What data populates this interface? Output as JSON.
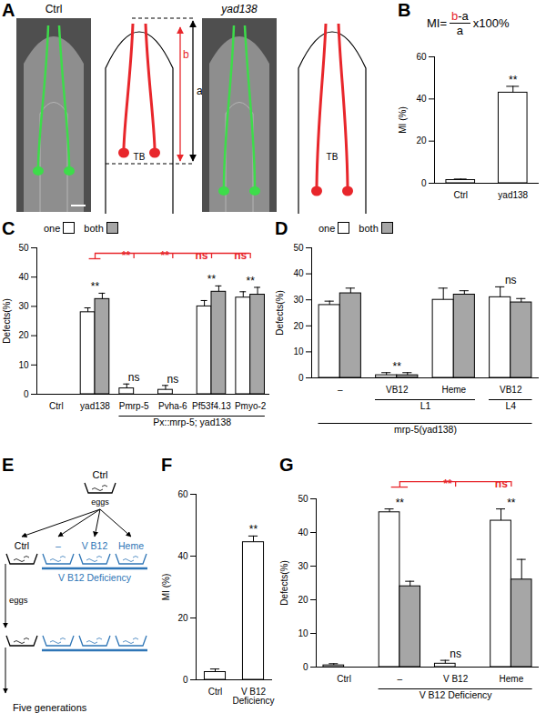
{
  "figure": {
    "A": {
      "panel": "A",
      "images": [
        "Ctrl",
        "yad138"
      ],
      "distances": [
        "a",
        "b"
      ],
      "colors": [
        "#000000",
        "#e8262b"
      ],
      "landmark": "TB"
    },
    "E": {
      "panel": "E",
      "start": {
        "label": "Ctrl",
        "content": "eggs"
      },
      "conditions": [
        "Ctrl",
        "–",
        "V B12",
        "Heme"
      ],
      "colors": [
        "#000000",
        "#2e75b6",
        "#2e75b6",
        "#2e75b6"
      ],
      "deficiency": {
        "label": "V B12 Deficiency",
        "from": 1,
        "to": 3
      },
      "transfer": "eggs",
      "repeat": "Five generations"
    }
  },
  "chart_data": [
    {
      "panel": "B",
      "type": "bar",
      "ylabel": "MI (%)",
      "formula": {
        "lhs": "MI=",
        "numerator": [
          {
            "text": "b",
            "color": "#e8262b"
          },
          {
            "text": "-a",
            "color": "#000000"
          }
        ],
        "denominator": "a",
        "factor": "x100%"
      },
      "categories": [
        "Ctrl",
        "yad138"
      ],
      "values": [
        1.5,
        43
      ],
      "errors": [
        0.5,
        3
      ],
      "color": "#ffffff",
      "annotations": [
        null,
        "**"
      ],
      "ylim": [
        0,
        60
      ],
      "yticks": [
        0,
        20,
        40,
        60
      ]
    },
    {
      "panel": "C",
      "type": "bar",
      "ylabel": "Defects(%)",
      "categories": [
        "Ctrl",
        "yad138",
        "Pmrp-5",
        "Pvha-6",
        "Pf53f4.13",
        "Pmyo-2"
      ],
      "series": [
        {
          "name": "one",
          "color": "#ffffff",
          "values": [
            0,
            28,
            2,
            1.5,
            30,
            33
          ],
          "errors": [
            0,
            1.5,
            1.5,
            1.5,
            2,
            2
          ]
        },
        {
          "name": "both",
          "color": "#a6a6a6",
          "values": [
            0,
            32.5,
            0,
            0,
            35,
            34
          ],
          "errors": [
            0,
            2,
            0,
            0,
            2,
            2.5
          ]
        }
      ],
      "annotations": [
        null,
        "**",
        "ns",
        "ns",
        "**",
        "**"
      ],
      "comparisons": {
        "reference": 1,
        "targets": [
          2,
          3,
          4,
          5
        ],
        "labels": [
          "**",
          "**",
          "ns",
          "ns"
        ],
        "color": "#e8262b"
      },
      "groups": [
        {
          "label": "Px::mrp-5; yad138",
          "from": 2,
          "to": 5,
          "level": 1
        }
      ],
      "legend": "top-left",
      "ylim": [
        0,
        50
      ],
      "yticks": [
        0,
        10,
        20,
        30,
        40,
        50
      ]
    },
    {
      "panel": "D",
      "type": "bar",
      "ylabel": "Defects(%)",
      "categories": [
        "–",
        "VB12",
        "Heme",
        "VB12"
      ],
      "series": [
        {
          "name": "one",
          "color": "#ffffff",
          "values": [
            28,
            1,
            30,
            31
          ],
          "errors": [
            1.5,
            1,
            4.5,
            4
          ]
        },
        {
          "name": "both",
          "color": "#a6a6a6",
          "values": [
            32.5,
            1,
            32,
            29
          ],
          "errors": [
            2,
            1,
            1.5,
            1.5
          ]
        }
      ],
      "annotations": [
        null,
        "**",
        null,
        "ns"
      ],
      "groups": [
        {
          "label": "L1",
          "from": 1,
          "to": 2,
          "level": 1
        },
        {
          "label": "L4",
          "from": 3,
          "to": 3,
          "level": 1
        },
        {
          "label": "mrp-5(yad138)",
          "from": 0,
          "to": 3,
          "level": 2
        }
      ],
      "legend": "top-left",
      "ylim": [
        0,
        50
      ],
      "yticks": [
        0,
        10,
        20,
        30,
        40,
        50
      ]
    },
    {
      "panel": "F",
      "type": "bar",
      "ylabel": "MI (%)",
      "categories": [
        "Ctrl",
        "V B12 Deficiency"
      ],
      "values": [
        2.5,
        44.5
      ],
      "errors": [
        1,
        2
      ],
      "color": "#ffffff",
      "annotations": [
        null,
        "**"
      ],
      "ylim": [
        0,
        60
      ],
      "yticks": [
        0,
        20,
        40,
        60
      ]
    },
    {
      "panel": "G",
      "type": "bar",
      "ylabel": "Defects(%)",
      "categories": [
        "Ctrl",
        "–",
        "V B12",
        "Heme"
      ],
      "series": [
        {
          "name": "one",
          "color": "#ffffff",
          "values": [
            0.5,
            46,
            1,
            43.5
          ],
          "errors": [
            0.5,
            1,
            1,
            3.5
          ]
        },
        {
          "name": "both",
          "color": "#a6a6a6",
          "values": [
            0,
            24,
            0,
            26
          ],
          "errors": [
            0,
            1.5,
            0,
            6
          ]
        }
      ],
      "annotations": [
        null,
        "**",
        "ns",
        "**"
      ],
      "comparisons": {
        "reference": 1,
        "targets": [
          2,
          3
        ],
        "labels": [
          "**",
          "ns"
        ],
        "color": "#e8262b"
      },
      "groups": [
        {
          "label": "V B12 Deficiency",
          "from": 1,
          "to": 3,
          "level": 1
        }
      ],
      "ylim": [
        0,
        50
      ],
      "yticks": [
        0,
        10,
        20,
        30,
        40,
        50
      ]
    }
  ]
}
